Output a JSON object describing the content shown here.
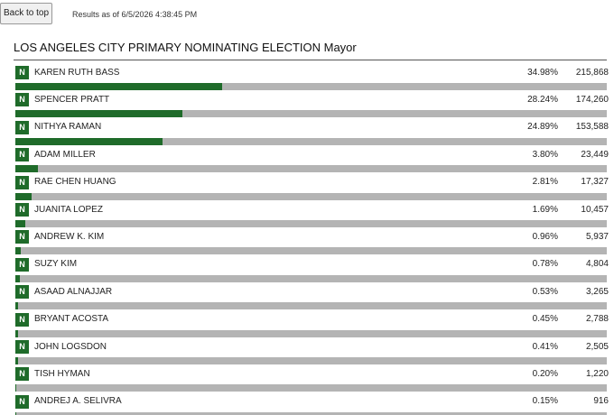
{
  "header": {
    "button": "Back to top",
    "timestamp": "Results as of 6/5/2026 4:38:45 PM",
    "title": "LOS ANGELES CITY PRIMARY NOMINATING ELECTION Mayor"
  },
  "candidates": [
    {
      "badge": "N",
      "name": "KAREN RUTH BASS",
      "percent": {
        "value": 34.98,
        "label": "34.98%"
      },
      "votes": {
        "value": 215868,
        "label": "215,868"
      }
    },
    {
      "badge": "N",
      "name": "SPENCER PRATT",
      "percent": {
        "value": 28.24,
        "label": "28.24%"
      },
      "votes": {
        "value": 174260,
        "label": "174,260"
      }
    },
    {
      "badge": "N",
      "name": "NITHYA RAMAN",
      "percent": {
        "value": 24.89,
        "label": "24.89%"
      },
      "votes": {
        "value": 153588,
        "label": "153,588"
      }
    },
    {
      "badge": "N",
      "name": "ADAM MILLER",
      "percent": {
        "value": 3.8,
        "label": "3.80%"
      },
      "votes": {
        "value": 23449,
        "label": "23,449"
      }
    },
    {
      "badge": "N",
      "name": "RAE CHEN HUANG",
      "percent": {
        "value": 2.81,
        "label": "2.81%"
      },
      "votes": {
        "value": 17327,
        "label": "17,327"
      }
    },
    {
      "badge": "N",
      "name": "JUANITA LOPEZ",
      "percent": {
        "value": 1.69,
        "label": "1.69%"
      },
      "votes": {
        "value": 10457,
        "label": "10,457"
      }
    },
    {
      "badge": "N",
      "name": "ANDREW K. KIM",
      "percent": {
        "value": 0.96,
        "label": "0.96%"
      },
      "votes": {
        "value": 5937,
        "label": "5,937"
      }
    },
    {
      "badge": "N",
      "name": "SUZY KIM",
      "percent": {
        "value": 0.78,
        "label": "0.78%"
      },
      "votes": {
        "value": 4804,
        "label": "4,804"
      }
    },
    {
      "badge": "N",
      "name": "ASAAD ALNAJJAR",
      "percent": {
        "value": 0.53,
        "label": "0.53%"
      },
      "votes": {
        "value": 3265,
        "label": "3,265"
      }
    },
    {
      "badge": "N",
      "name": "BRYANT ACOSTA",
      "percent": {
        "value": 0.45,
        "label": "0.45%"
      },
      "votes": {
        "value": 2788,
        "label": "2,788"
      }
    },
    {
      "badge": "N",
      "name": "JOHN LOGSDON",
      "percent": {
        "value": 0.41,
        "label": "0.41%"
      },
      "votes": {
        "value": 2505,
        "label": "2,505"
      }
    },
    {
      "badge": "N",
      "name": "TISH HYMAN",
      "percent": {
        "value": 0.2,
        "label": "0.20%"
      },
      "votes": {
        "value": 1220,
        "label": "1,220"
      }
    },
    {
      "badge": "N",
      "name": "ANDREJ A. SELIVRA",
      "percent": {
        "value": 0.15,
        "label": "0.15%"
      },
      "votes": {
        "value": 916,
        "label": "916"
      }
    }
  ]
}
